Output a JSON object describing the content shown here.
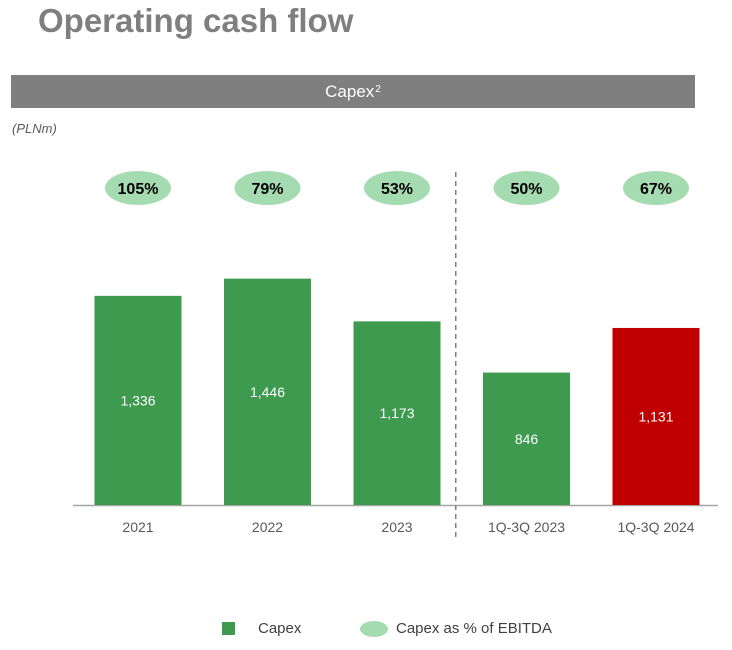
{
  "title": "Operating cash flow",
  "banner": {
    "label": "Capex",
    "superscript": "2"
  },
  "unit_label": "(PLNm)",
  "colors": {
    "bar_default": "#3d9a4e",
    "bar_highlight": "#c00000",
    "pill": "#a5dbb0",
    "axis": "#a6a6a6",
    "divider": "#7f7f7f",
    "tick_text": "#595959"
  },
  "chart_data": {
    "type": "bar",
    "categories": [
      "2021",
      "2022",
      "2023",
      "1Q-3Q 2023",
      "1Q-3Q 2024"
    ],
    "series": [
      {
        "name": "Capex",
        "values": [
          1336,
          1446,
          1173,
          846,
          1131
        ],
        "data_labels": [
          "1,336",
          "1,446",
          "1,173",
          "846",
          "1,131"
        ]
      },
      {
        "name": "Capex as % of EBITDA",
        "values": [
          105,
          79,
          53,
          50,
          67
        ],
        "data_labels": [
          "105%",
          "79%",
          "53%",
          "50%",
          "67%"
        ]
      }
    ],
    "highlighted_category": "1Q-3Q 2024",
    "divider_after_category": "2023",
    "ylim": [
      0,
      1450
    ],
    "legend_position": "bottom",
    "grid": false
  },
  "legend": [
    {
      "label": "Capex",
      "marker": "square"
    },
    {
      "label": "Capex as % of EBITDA",
      "marker": "ellipse"
    }
  ]
}
